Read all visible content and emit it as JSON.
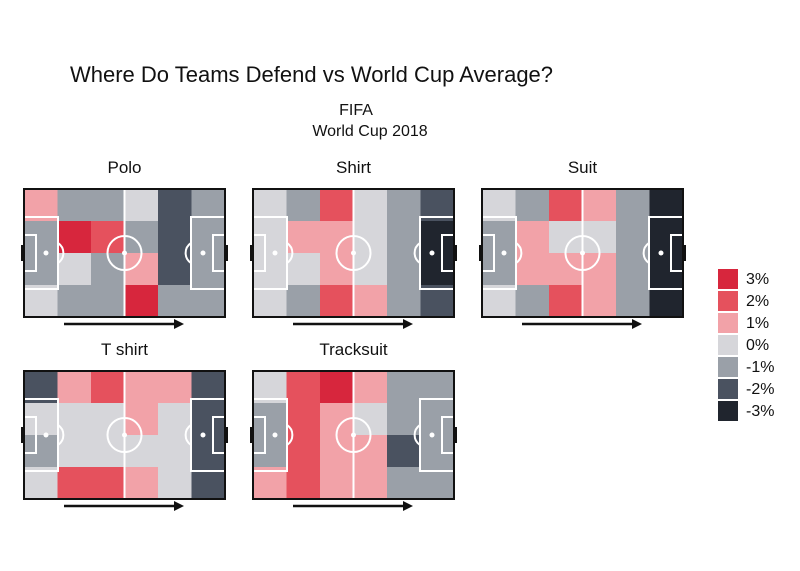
{
  "chart_data": {
    "type": "heatmap",
    "title": "Where Do Teams Defend vs World Cup Average?",
    "subtitle_line1": "FIFA",
    "subtitle_line2": "World Cup 2018",
    "xlabel": "",
    "ylabel": "",
    "grid": false,
    "legend_position": "right",
    "legend": [
      {
        "label": "3%",
        "value": 3,
        "color": "#d7263d"
      },
      {
        "label": "2%",
        "value": 2,
        "color": "#e5515d"
      },
      {
        "label": "1%",
        "value": 1,
        "color": "#f2a2a8"
      },
      {
        "label": "0%",
        "value": 0,
        "color": "#d6d6da"
      },
      {
        "label": "-1%",
        "value": -1,
        "color": "#9aa0a8"
      },
      {
        "label": "-2%",
        "value": -2,
        "color": "#4a5260"
      },
      {
        "label": "-3%",
        "value": -3,
        "color": "#20252e"
      }
    ],
    "panels": [
      {
        "name": "Polo",
        "grid": [
          [
            1,
            -1,
            -1,
            0,
            -2,
            -1
          ],
          [
            -1,
            3,
            2,
            -1,
            -2,
            -1
          ],
          [
            -1,
            0,
            -1,
            1,
            -2,
            -1
          ],
          [
            0,
            -1,
            -1,
            3,
            -1,
            -1
          ]
        ]
      },
      {
        "name": "Shirt",
        "grid": [
          [
            0,
            -1,
            2,
            0,
            -1,
            -2
          ],
          [
            0,
            1,
            1,
            0,
            -1,
            -3
          ],
          [
            0,
            0,
            1,
            0,
            -1,
            -3
          ],
          [
            0,
            -1,
            2,
            1,
            -1,
            -2
          ]
        ]
      },
      {
        "name": "Suit",
        "grid": [
          [
            0,
            -1,
            2,
            1,
            -1,
            -3
          ],
          [
            -1,
            1,
            0,
            0,
            -1,
            -3
          ],
          [
            -1,
            1,
            1,
            1,
            -1,
            -3
          ],
          [
            0,
            -1,
            2,
            1,
            -1,
            -3
          ]
        ]
      },
      {
        "name": "T shirt",
        "grid": [
          [
            -2,
            1,
            2,
            1,
            1,
            -2
          ],
          [
            0,
            0,
            0,
            1,
            0,
            -2
          ],
          [
            -1,
            0,
            0,
            0,
            0,
            -2
          ],
          [
            0,
            2,
            2,
            1,
            0,
            -2
          ]
        ]
      },
      {
        "name": "Tracksuit",
        "grid": [
          [
            0,
            2,
            3,
            1,
            -1,
            -1
          ],
          [
            -1,
            2,
            1,
            0,
            -1,
            -1
          ],
          [
            -1,
            2,
            1,
            1,
            -2,
            -1
          ],
          [
            1,
            2,
            1,
            1,
            -1,
            -1
          ]
        ]
      }
    ]
  }
}
